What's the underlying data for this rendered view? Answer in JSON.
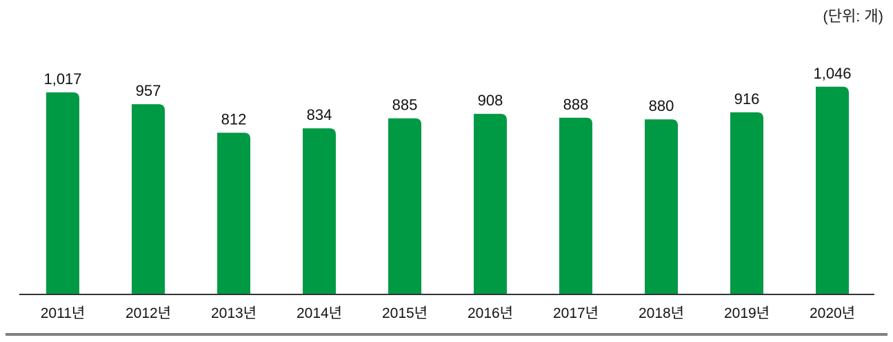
{
  "chart_data": {
    "type": "bar",
    "unit": "(단위: 개)",
    "categories": [
      "2011년",
      "2012년",
      "2013년",
      "2014년",
      "2015년",
      "2016년",
      "2017년",
      "2018년",
      "2019년",
      "2020년"
    ],
    "values": [
      1017,
      957,
      812,
      834,
      885,
      908,
      888,
      880,
      916,
      1046
    ],
    "value_labels": [
      "1,017",
      "957",
      "812",
      "834",
      "885",
      "908",
      "888",
      "880",
      "916",
      "1,046"
    ],
    "bar_color": "#009A44",
    "axis_color": "#333333",
    "rule_color": "#808080",
    "grid": false,
    "legend": "none",
    "ylim": [
      0,
      1100
    ]
  }
}
